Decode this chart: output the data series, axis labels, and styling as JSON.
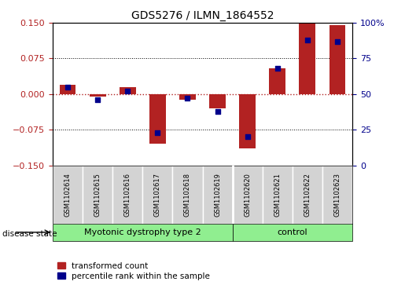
{
  "title": "GDS5276 / ILMN_1864552",
  "samples": [
    "GSM1102614",
    "GSM1102615",
    "GSM1102616",
    "GSM1102617",
    "GSM1102618",
    "GSM1102619",
    "GSM1102620",
    "GSM1102621",
    "GSM1102622",
    "GSM1102623"
  ],
  "transformed_count": [
    0.02,
    -0.005,
    0.015,
    -0.105,
    -0.012,
    -0.03,
    -0.115,
    0.055,
    0.15,
    0.145
  ],
  "percentile_rank": [
    55,
    46,
    52,
    23,
    47,
    38,
    20,
    68,
    88,
    87
  ],
  "ylim_left": [
    -0.15,
    0.15
  ],
  "ylim_right": [
    0,
    100
  ],
  "yticks_left": [
    -0.15,
    -0.075,
    0,
    0.075,
    0.15
  ],
  "yticks_right": [
    0,
    25,
    50,
    75,
    100
  ],
  "bar_color_red": "#b22222",
  "dot_color_blue": "#00008b",
  "group_boundary": 6,
  "group1_label": "Myotonic dystrophy type 2",
  "group2_label": "control",
  "group_color": "#90ee90",
  "sample_bg_color": "#d3d3d3",
  "bar_width": 0.55
}
